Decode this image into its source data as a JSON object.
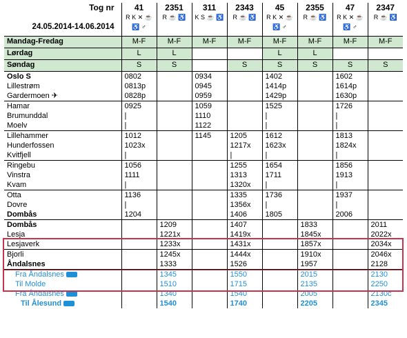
{
  "header": {
    "title": "Tog nr",
    "dates": "24.05.2014-14.06.2014",
    "trains": [
      {
        "no": "41",
        "svc1": "R K ✕ ☕",
        "svc2": "♿ ♂"
      },
      {
        "no": "2351",
        "svc1": "R ☕ ♿",
        "svc2": ""
      },
      {
        "no": "311",
        "svc1": "K S ☕ ♿",
        "svc2": ""
      },
      {
        "no": "2343",
        "svc1": "R ☕ ♿",
        "svc2": ""
      },
      {
        "no": "45",
        "svc1": "R K ✕ ☕",
        "svc2": "♿ ♂"
      },
      {
        "no": "2355",
        "svc1": "R ☕ ♿",
        "svc2": ""
      },
      {
        "no": "47",
        "svc1": "R K ✕ ☕",
        "svc2": "♿ ♂"
      },
      {
        "no": "2347",
        "svc1": "R ☕ ♿",
        "svc2": ""
      }
    ]
  },
  "days": [
    {
      "label": "Mandag-Fredag",
      "cells": [
        "M-F",
        "M-F",
        "M-F",
        "M-F",
        "M-F",
        "M-F",
        "M-F",
        "M-F"
      ]
    },
    {
      "label": "Lørdag",
      "cells": [
        "L",
        "L",
        "",
        "",
        "L",
        "L",
        "",
        ""
      ]
    },
    {
      "label": "Søndag",
      "cells": [
        "S",
        "S",
        "",
        "S",
        "S",
        "S",
        "S",
        "S"
      ]
    }
  ],
  "groups": [
    {
      "rows": [
        {
          "station": "Oslo S",
          "bold": true,
          "t": [
            "0802",
            "",
            "0934",
            "",
            "1402",
            "",
            "1602",
            ""
          ]
        },
        {
          "station": "Lillestrøm",
          "t": [
            "0813p",
            "",
            "0945",
            "",
            "1414p",
            "",
            "1614p",
            ""
          ]
        },
        {
          "station": "Gardermoen",
          "icon": "plane",
          "t": [
            "0828p",
            "",
            "0959",
            "",
            "1429p",
            "",
            "1630p",
            ""
          ]
        }
      ]
    },
    {
      "rows": [
        {
          "station": "Hamar",
          "t": [
            "0925",
            "",
            "1059",
            "",
            "1525",
            "",
            "1726",
            ""
          ]
        },
        {
          "station": "Brumunddal",
          "t": [
            "|",
            "",
            "1110",
            "",
            "|",
            "",
            "|",
            ""
          ]
        },
        {
          "station": "Moelv",
          "t": [
            "|",
            "",
            "1122",
            "",
            "|",
            "",
            "|",
            ""
          ]
        }
      ]
    },
    {
      "rows": [
        {
          "station": "Lillehammer",
          "t": [
            "1012",
            "",
            "1145",
            "1205",
            "1612",
            "",
            "1813",
            ""
          ]
        },
        {
          "station": "Hunderfossen",
          "t": [
            "1023x",
            "",
            "",
            "1217x",
            "1623x",
            "",
            "1824x",
            ""
          ]
        },
        {
          "station": "Kvitfjell",
          "t": [
            "|",
            "",
            "",
            "|",
            "|",
            "",
            "|",
            ""
          ]
        }
      ]
    },
    {
      "rows": [
        {
          "station": "Ringebu",
          "t": [
            "1056",
            "",
            "",
            "1255",
            "1654",
            "",
            "1856",
            ""
          ]
        },
        {
          "station": "Vinstra",
          "t": [
            "1111",
            "",
            "",
            "1313",
            "1711",
            "",
            "1913",
            ""
          ]
        },
        {
          "station": "Kvam",
          "t": [
            "|",
            "",
            "",
            "1320x",
            "|",
            "",
            "|",
            ""
          ]
        }
      ]
    },
    {
      "rows": [
        {
          "station": "Otta",
          "t": [
            "1136",
            "",
            "",
            "1335",
            "1736",
            "",
            "1937",
            ""
          ]
        },
        {
          "station": "Dovre",
          "t": [
            "|",
            "",
            "",
            "1356x",
            "|",
            "",
            "|",
            ""
          ]
        },
        {
          "station": "Dombås",
          "bold": true,
          "t": [
            "1204",
            "",
            "",
            "1406",
            "1805",
            "",
            "2006",
            ""
          ]
        }
      ]
    },
    {
      "rows": [
        {
          "station": "Dombås",
          "bold": true,
          "t": [
            "",
            "1209",
            "",
            "1407",
            "",
            "1833",
            "",
            "2011"
          ]
        },
        {
          "station": "Lesja",
          "t": [
            "",
            "1221x",
            "",
            "1419x",
            "",
            "1845x",
            "",
            "2022x"
          ]
        },
        {
          "station": "Lesjaverk",
          "t": [
            "",
            "1233x",
            "",
            "1431x",
            "",
            "1857x",
            "",
            "2034x"
          ]
        }
      ]
    },
    {
      "rows": [
        {
          "station": "Bjorli",
          "t": [
            "",
            "1245x",
            "",
            "1444x",
            "",
            "1910x",
            "",
            "2046x"
          ]
        },
        {
          "station": "Åndalsnes",
          "bold": true,
          "t": [
            "",
            "1333",
            "",
            "1526",
            "",
            "1957",
            "",
            "2128"
          ]
        }
      ]
    }
  ],
  "connections": [
    {
      "label": "Fra Åndalsnes",
      "bold": false,
      "indent": 1,
      "t": [
        "",
        "1345",
        "",
        "1550",
        "",
        "2015",
        "",
        "2130"
      ]
    },
    {
      "label": "Til Molde",
      "bold": false,
      "indent": 1,
      "t": [
        "",
        "1510",
        "",
        "1715",
        "",
        "2135",
        "",
        "2250"
      ]
    },
    {
      "label": "Fra Åndalsnes",
      "bold": false,
      "indent": 1,
      "t": [
        "",
        "1340",
        "",
        "1540",
        "",
        "2005",
        "",
        "2130c"
      ]
    },
    {
      "label": "Til Ålesund",
      "bold": true,
      "indent": 0,
      "t": [
        "",
        "1540",
        "",
        "1740",
        "",
        "2205",
        "",
        "2345"
      ]
    }
  ],
  "icons": {
    "plane": "airplane-icon",
    "bus": "bus-icon"
  },
  "colors": {
    "day_bg": "#cfe8cf",
    "connection_text": "#1f8fd6",
    "highlight_box": "#c8324a"
  }
}
